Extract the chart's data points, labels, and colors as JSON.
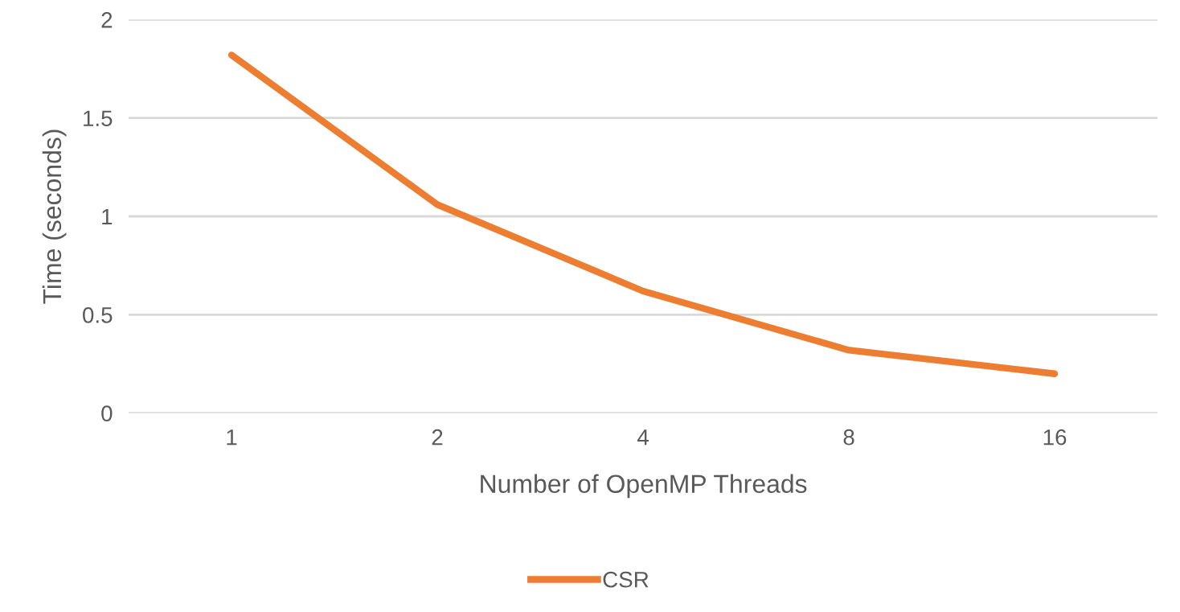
{
  "chart_data": {
    "type": "line",
    "xlabel": "Number of OpenMP Threads",
    "ylabel": "Time (seconds)",
    "categories": [
      "1",
      "2",
      "4",
      "8",
      "16"
    ],
    "series": [
      {
        "name": "CSR",
        "color": "#ed7d31",
        "values": [
          1.82,
          1.06,
          0.62,
          0.32,
          0.2
        ]
      }
    ],
    "ylim": [
      0,
      2
    ],
    "yticks": [
      0,
      0.5,
      1,
      1.5,
      2
    ],
    "grid": "y",
    "legend": "bottom",
    "marker": "none",
    "line_style": "solid"
  }
}
